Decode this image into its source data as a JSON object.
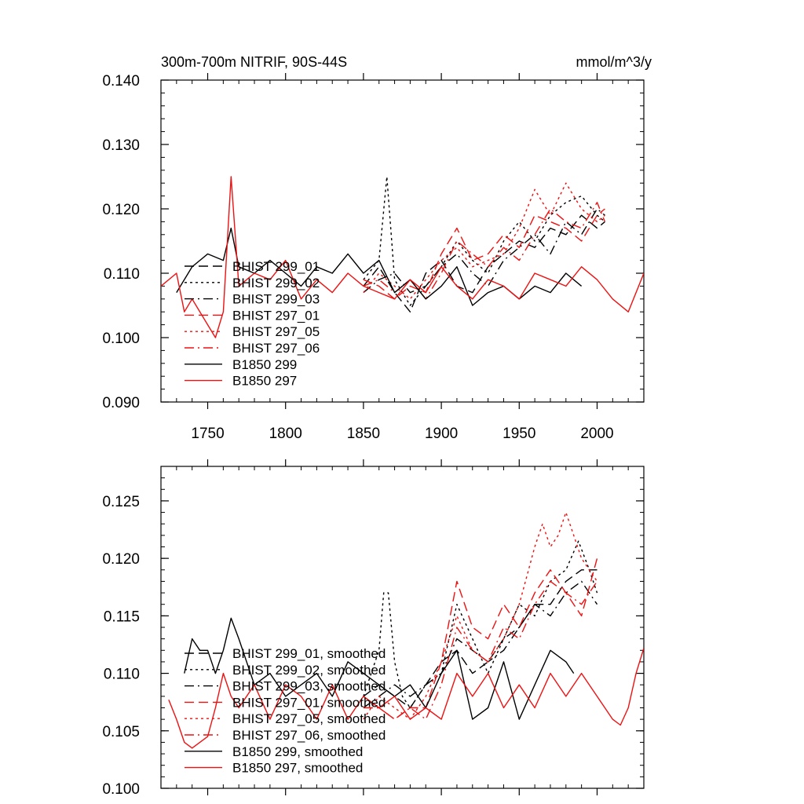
{
  "header": {
    "title": "300m-700m NITRIF, 90S-44S",
    "units": "mmol/m^3/y"
  },
  "colors": {
    "black": "#000000",
    "red": "#ee1111"
  },
  "chart_data": [
    {
      "type": "line",
      "title": "300m-700m NITRIF, 90S-44S",
      "units": "mmol/m^3/y",
      "xlim": [
        1720,
        2030
      ],
      "ylim": [
        0.09,
        0.14
      ],
      "xticks": [
        1750,
        1800,
        1850,
        1900,
        1950,
        2000
      ],
      "xtick_labels": [
        "1750",
        "1800",
        "1850",
        "1900",
        "1950",
        "2000"
      ],
      "yticks": [
        0.09,
        0.1,
        0.11,
        0.12,
        0.13,
        0.14
      ],
      "ytick_labels": [
        "0.090",
        "0.100",
        "0.110",
        "0.120",
        "0.130",
        "0.140"
      ],
      "grid": false,
      "legend_position": "bottom-left",
      "series": [
        {
          "name": "BHIST 299_01",
          "color": "#000000",
          "dash": "dash",
          "x": [
            1850,
            1860,
            1870,
            1880,
            1890,
            1900,
            1910,
            1920,
            1930,
            1940,
            1950,
            1960,
            1970,
            1980,
            1990,
            2000,
            2005
          ],
          "y": [
            0.108,
            0.111,
            0.107,
            0.104,
            0.11,
            0.112,
            0.108,
            0.107,
            0.111,
            0.113,
            0.115,
            0.114,
            0.117,
            0.116,
            0.119,
            0.117,
            0.118
          ]
        },
        {
          "name": "BHIST 299_02",
          "color": "#000000",
          "dash": "dot",
          "x": [
            1850,
            1860,
            1865,
            1870,
            1880,
            1890,
            1900,
            1910,
            1920,
            1930,
            1940,
            1950,
            1960,
            1970,
            1980,
            1990,
            2000,
            2005
          ],
          "y": [
            0.109,
            0.112,
            0.125,
            0.109,
            0.105,
            0.108,
            0.111,
            0.115,
            0.112,
            0.11,
            0.115,
            0.118,
            0.115,
            0.119,
            0.121,
            0.122,
            0.119,
            0.118
          ]
        },
        {
          "name": "BHIST 299_03",
          "color": "#000000",
          "dash": "dashdot",
          "x": [
            1850,
            1860,
            1870,
            1880,
            1890,
            1900,
            1910,
            1920,
            1930,
            1940,
            1950,
            1960,
            1970,
            1980,
            1990,
            2000,
            2005
          ],
          "y": [
            0.107,
            0.109,
            0.11,
            0.107,
            0.108,
            0.111,
            0.113,
            0.11,
            0.108,
            0.112,
            0.114,
            0.116,
            0.113,
            0.118,
            0.116,
            0.12,
            0.119
          ]
        },
        {
          "name": "BHIST 297_01",
          "color": "#ee1111",
          "dash": "dash",
          "x": [
            1850,
            1860,
            1870,
            1880,
            1890,
            1900,
            1910,
            1920,
            1930,
            1940,
            1950,
            1960,
            1970,
            1980,
            1990,
            2000,
            2005
          ],
          "y": [
            0.109,
            0.108,
            0.106,
            0.108,
            0.107,
            0.113,
            0.117,
            0.112,
            0.113,
            0.116,
            0.114,
            0.119,
            0.118,
            0.117,
            0.115,
            0.119,
            0.12
          ]
        },
        {
          "name": "BHIST 297_05",
          "color": "#ee1111",
          "dash": "dot",
          "x": [
            1850,
            1860,
            1870,
            1880,
            1890,
            1900,
            1910,
            1920,
            1930,
            1940,
            1950,
            1960,
            1970,
            1980,
            1990,
            2000,
            2005
          ],
          "y": [
            0.107,
            0.11,
            0.108,
            0.106,
            0.109,
            0.112,
            0.114,
            0.111,
            0.112,
            0.113,
            0.117,
            0.123,
            0.119,
            0.124,
            0.12,
            0.118,
            0.119
          ]
        },
        {
          "name": "BHIST 297_06",
          "color": "#ee1111",
          "dash": "dashdot",
          "x": [
            1850,
            1860,
            1870,
            1880,
            1890,
            1900,
            1910,
            1920,
            1930,
            1940,
            1950,
            1960,
            1970,
            1980,
            1990,
            2000,
            2005
          ],
          "y": [
            0.108,
            0.109,
            0.107,
            0.109,
            0.106,
            0.11,
            0.115,
            0.113,
            0.111,
            0.114,
            0.112,
            0.116,
            0.12,
            0.118,
            0.117,
            0.121,
            0.118
          ]
        },
        {
          "name": "B1850 299",
          "color": "#000000",
          "dash": "solid",
          "x": [
            1730,
            1740,
            1750,
            1760,
            1765,
            1770,
            1780,
            1790,
            1800,
            1810,
            1820,
            1830,
            1840,
            1850,
            1860,
            1870,
            1880,
            1890,
            1900,
            1910,
            1920,
            1930,
            1940,
            1950,
            1960,
            1970,
            1980,
            1990
          ],
          "y": [
            0.107,
            0.111,
            0.113,
            0.112,
            0.117,
            0.111,
            0.11,
            0.112,
            0.11,
            0.108,
            0.111,
            0.11,
            0.113,
            0.11,
            0.112,
            0.107,
            0.109,
            0.106,
            0.108,
            0.111,
            0.105,
            0.107,
            0.108,
            0.106,
            0.108,
            0.107,
            0.11,
            0.108
          ]
        },
        {
          "name": "B1850 297",
          "color": "#ee1111",
          "dash": "solid",
          "x": [
            1720,
            1730,
            1735,
            1740,
            1750,
            1755,
            1760,
            1765,
            1770,
            1780,
            1790,
            1800,
            1810,
            1820,
            1830,
            1840,
            1850,
            1860,
            1870,
            1880,
            1890,
            1900,
            1910,
            1920,
            1930,
            1940,
            1950,
            1960,
            1970,
            1980,
            1990,
            2000,
            2010,
            2020,
            2030
          ],
          "y": [
            0.108,
            0.11,
            0.104,
            0.106,
            0.102,
            0.1,
            0.104,
            0.125,
            0.108,
            0.11,
            0.109,
            0.112,
            0.106,
            0.109,
            0.107,
            0.11,
            0.108,
            0.107,
            0.106,
            0.109,
            0.107,
            0.111,
            0.108,
            0.106,
            0.109,
            0.108,
            0.106,
            0.11,
            0.109,
            0.108,
            0.111,
            0.109,
            0.106,
            0.104,
            0.11
          ]
        }
      ]
    },
    {
      "type": "line",
      "xlim": [
        1720,
        2030
      ],
      "ylim": [
        0.1,
        0.128
      ],
      "xticks": [
        1750,
        1800,
        1850,
        1900,
        1950,
        2000
      ],
      "yticks": [
        0.1,
        0.105,
        0.11,
        0.115,
        0.12,
        0.125
      ],
      "ytick_labels": [
        "0.100",
        "0.105",
        "0.110",
        "0.115",
        "0.120",
        "0.125"
      ],
      "grid": false,
      "legend_position": "bottom-left",
      "series": [
        {
          "name": "BHIST 299_01, smoothed",
          "color": "#000000",
          "dash": "dash",
          "x": [
            1850,
            1860,
            1870,
            1880,
            1890,
            1900,
            1910,
            1920,
            1930,
            1940,
            1950,
            1960,
            1970,
            1980,
            1990,
            2000
          ],
          "y": [
            0.108,
            0.109,
            0.108,
            0.107,
            0.109,
            0.111,
            0.112,
            0.11,
            0.111,
            0.113,
            0.114,
            0.116,
            0.116,
            0.118,
            0.119,
            0.119
          ]
        },
        {
          "name": "BHIST 299_02, smoothed",
          "color": "#000000",
          "dash": "dot",
          "x": [
            1850,
            1855,
            1860,
            1863,
            1866,
            1870,
            1875,
            1880,
            1890,
            1900,
            1910,
            1920,
            1930,
            1940,
            1950,
            1960,
            1970,
            1980,
            1988,
            1995,
            2000
          ],
          "y": [
            0.108,
            0.11,
            0.112,
            0.117,
            0.117,
            0.111,
            0.108,
            0.107,
            0.109,
            0.11,
            0.116,
            0.113,
            0.11,
            0.113,
            0.116,
            0.115,
            0.118,
            0.119,
            0.1215,
            0.119,
            0.117
          ]
        },
        {
          "name": "BHIST 299_03, smoothed",
          "color": "#000000",
          "dash": "dashdot",
          "x": [
            1850,
            1860,
            1870,
            1880,
            1890,
            1900,
            1910,
            1920,
            1930,
            1940,
            1950,
            1960,
            1970,
            1980,
            1990,
            2000
          ],
          "y": [
            0.107,
            0.108,
            0.109,
            0.108,
            0.109,
            0.11,
            0.113,
            0.112,
            0.111,
            0.112,
            0.114,
            0.116,
            0.115,
            0.117,
            0.118,
            0.116
          ]
        },
        {
          "name": "BHIST 297_01, smoothed",
          "color": "#ee1111",
          "dash": "dash",
          "x": [
            1850,
            1860,
            1870,
            1880,
            1890,
            1900,
            1910,
            1920,
            1930,
            1940,
            1950,
            1960,
            1970,
            1980,
            1990,
            2000
          ],
          "y": [
            0.108,
            0.107,
            0.106,
            0.107,
            0.107,
            0.111,
            0.118,
            0.114,
            0.113,
            0.116,
            0.114,
            0.117,
            0.119,
            0.117,
            0.115,
            0.12
          ]
        },
        {
          "name": "BHIST 297_05, smoothed",
          "color": "#ee1111",
          "dash": "dot",
          "x": [
            1850,
            1860,
            1870,
            1880,
            1890,
            1900,
            1910,
            1920,
            1930,
            1940,
            1950,
            1960,
            1965,
            1970,
            1975,
            1980,
            1990,
            2000
          ],
          "y": [
            0.106,
            0.108,
            0.107,
            0.106,
            0.108,
            0.111,
            0.115,
            0.112,
            0.111,
            0.113,
            0.116,
            0.121,
            0.123,
            0.121,
            0.122,
            0.124,
            0.12,
            0.118
          ]
        },
        {
          "name": "BHIST 297_06, smoothed",
          "color": "#ee1111",
          "dash": "dashdot",
          "x": [
            1850,
            1860,
            1870,
            1880,
            1890,
            1900,
            1910,
            1920,
            1930,
            1940,
            1950,
            1960,
            1970,
            1980,
            1990,
            2000
          ],
          "y": [
            0.107,
            0.107,
            0.106,
            0.107,
            0.106,
            0.109,
            0.114,
            0.112,
            0.111,
            0.114,
            0.113,
            0.116,
            0.118,
            0.117,
            0.116,
            0.118
          ]
        },
        {
          "name": "B1850 299, smoothed",
          "color": "#000000",
          "dash": "solid",
          "x": [
            1735,
            1740,
            1745,
            1750,
            1755,
            1760,
            1765,
            1770,
            1780,
            1790,
            1800,
            1810,
            1820,
            1830,
            1840,
            1850,
            1860,
            1870,
            1880,
            1890,
            1900,
            1910,
            1920,
            1930,
            1940,
            1950,
            1960,
            1970,
            1980,
            1985
          ],
          "y": [
            0.11,
            0.113,
            0.112,
            0.112,
            0.11,
            0.112,
            0.1148,
            0.113,
            0.109,
            0.11,
            0.108,
            0.109,
            0.11,
            0.108,
            0.111,
            0.11,
            0.109,
            0.108,
            0.109,
            0.107,
            0.11,
            0.112,
            0.106,
            0.107,
            0.111,
            0.106,
            0.109,
            0.112,
            0.111,
            0.11
          ]
        },
        {
          "name": "B1850 297, smoothed",
          "color": "#ee1111",
          "dash": "solid",
          "x": [
            1725,
            1730,
            1735,
            1740,
            1745,
            1750,
            1755,
            1760,
            1765,
            1770,
            1780,
            1790,
            1800,
            1810,
            1820,
            1830,
            1840,
            1850,
            1860,
            1870,
            1880,
            1890,
            1900,
            1910,
            1920,
            1930,
            1940,
            1950,
            1960,
            1970,
            1980,
            1990,
            2000,
            2005,
            2010,
            2015,
            2020,
            2025,
            2030
          ],
          "y": [
            0.1077,
            0.106,
            0.104,
            0.1035,
            0.104,
            0.1045,
            0.107,
            0.11,
            0.108,
            0.107,
            0.109,
            0.106,
            0.109,
            0.108,
            0.106,
            0.109,
            0.106,
            0.108,
            0.107,
            0.108,
            0.106,
            0.107,
            0.106,
            0.11,
            0.108,
            0.11,
            0.107,
            0.109,
            0.107,
            0.11,
            0.108,
            0.11,
            0.108,
            0.107,
            0.106,
            0.1055,
            0.107,
            0.11,
            0.1122
          ]
        }
      ]
    }
  ]
}
